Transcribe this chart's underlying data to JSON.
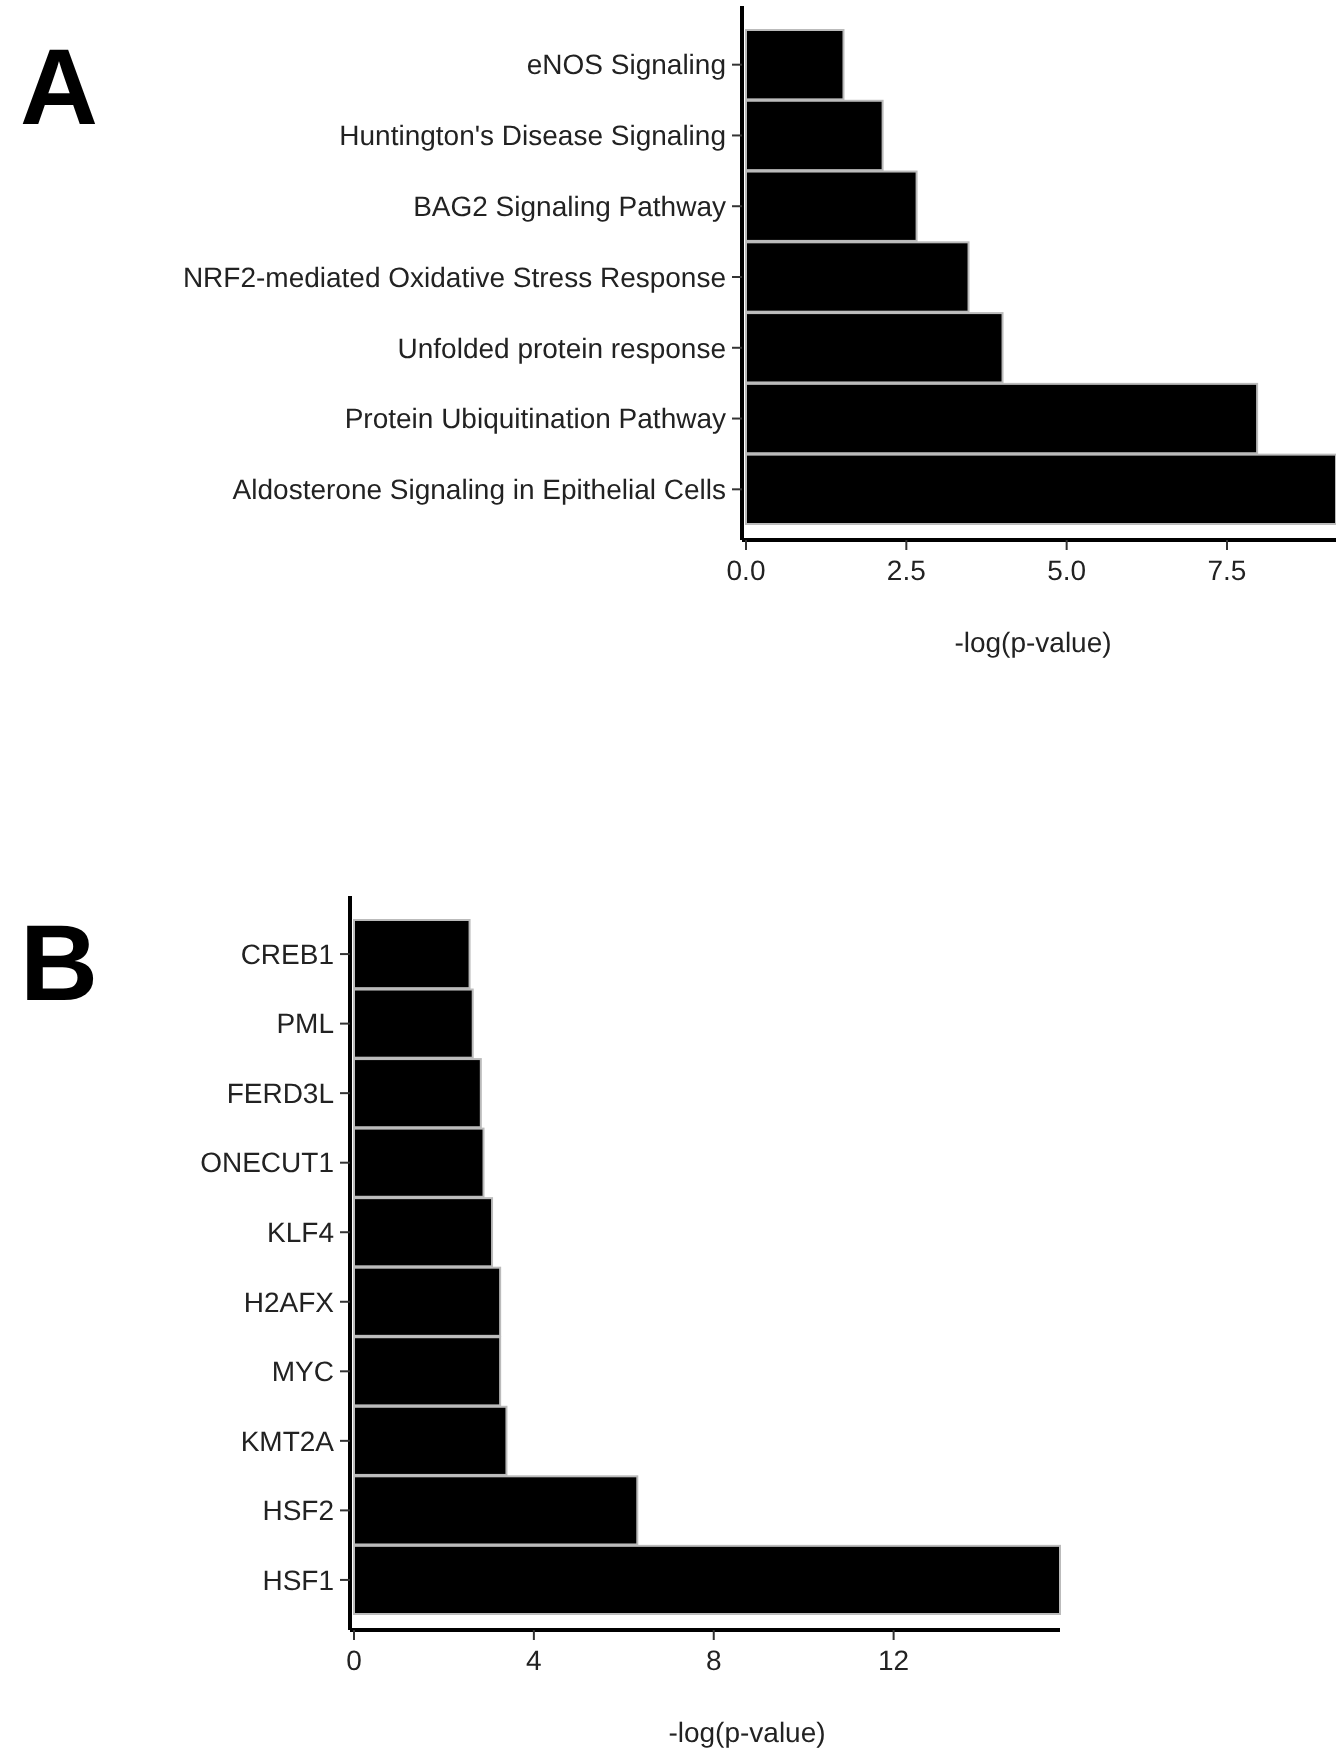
{
  "chart_data": [
    {
      "type": "bar",
      "title": "A",
      "orientation": "horizontal",
      "categories": [
        "eNOS Signaling",
        "Huntington's Disease Signaling",
        "BAG2 Signaling Pathway",
        "NRF2-mediated Oxidative Stress Response",
        "Unfolded protein response",
        "Protein Ubiquitination Pathway",
        "Aldosterone Signaling in Epithelial Cells"
      ],
      "values": [
        1.52,
        2.13,
        2.66,
        3.47,
        4.0,
        7.97,
        9.2
      ],
      "color": "#000000",
      "xlim": [
        0,
        9.2
      ],
      "xticks": [
        {
          "value": 0,
          "label": "0.0"
        },
        2.5,
        {
          "value": 5,
          "label": "5.0"
        },
        7.5
      ],
      "xlabel": "-log(p-value)"
    },
    {
      "type": "bar",
      "title": "B",
      "orientation": "horizontal",
      "categories": [
        "CREB1",
        "PML",
        "FERD3L",
        "ONECUT1",
        "KLF4",
        "H2AFX",
        "MYC",
        "KMT2A",
        "HSF2",
        "HSF1"
      ],
      "values": [
        2.57,
        2.64,
        2.82,
        2.88,
        3.07,
        3.25,
        3.25,
        3.39,
        6.3,
        15.7
      ],
      "color": "#000000",
      "xlim": [
        0,
        15.7
      ],
      "xticks": [
        0,
        4,
        8,
        12
      ],
      "xlabel": "-log(p-value)"
    }
  ]
}
